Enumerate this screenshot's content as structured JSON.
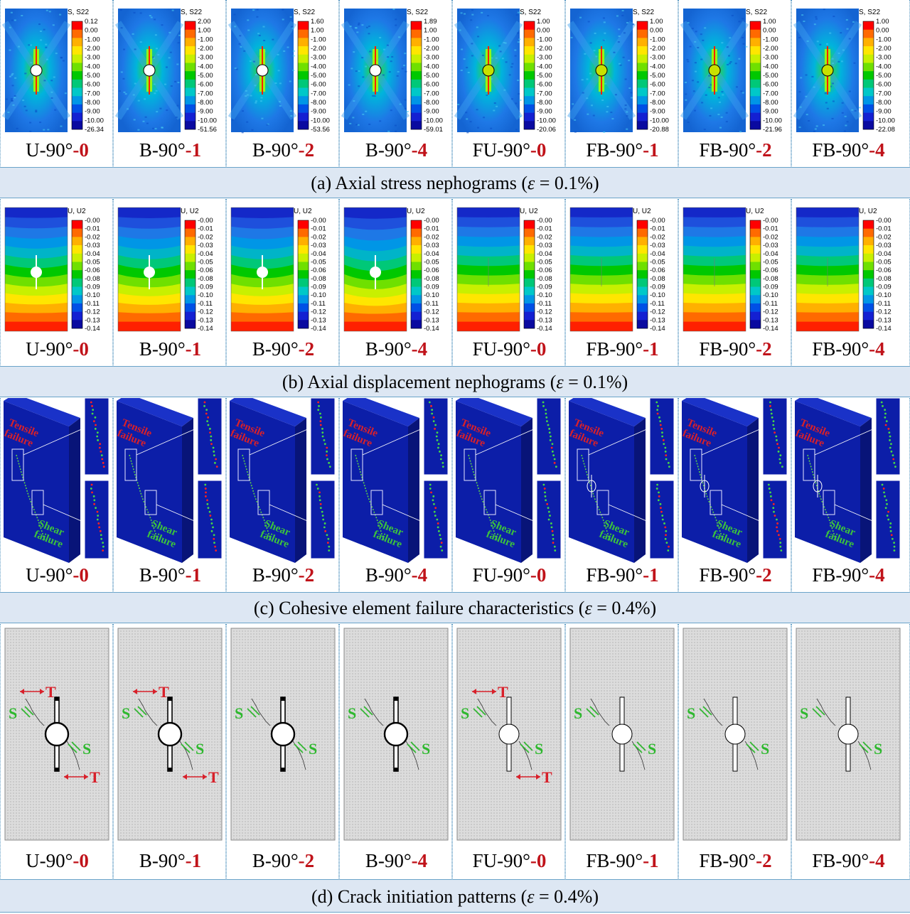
{
  "specimens": [
    {
      "base": "U-90°",
      "suffix": "-0"
    },
    {
      "base": "B-90°",
      "suffix": "-1"
    },
    {
      "base": "B-90°",
      "suffix": "-2"
    },
    {
      "base": "B-90°",
      "suffix": "-4"
    },
    {
      "base": "FU-90°",
      "suffix": "-0"
    },
    {
      "base": "FB-90°",
      "suffix": "-1"
    },
    {
      "base": "FB-90°",
      "suffix": "-2"
    },
    {
      "base": "FB-90°",
      "suffix": "-4"
    }
  ],
  "captions": {
    "a": {
      "prefix": "(a) Axial stress nephograms (",
      "symbol": "ε",
      "suffix": " = 0.1%)"
    },
    "b": {
      "prefix": "(b) Axial displacement nephograms (",
      "symbol": "ε",
      "suffix": " = 0.1%)"
    },
    "c": {
      "prefix": "(c) Cohesive element failure characteristics (",
      "symbol": "ε",
      "suffix": " = 0.4%)"
    },
    "d": {
      "prefix": "(d) Crack initiation patterns (",
      "symbol": "ε",
      "suffix": " = 0.4%)"
    }
  },
  "stress": {
    "legend_title": "S, S22",
    "common_ticks": [
      "-1.00",
      "-2.00",
      "-3.00",
      "-4.00",
      "-5.00",
      "-6.00",
      "-7.00",
      "-8.00",
      "-9.00",
      "-10.00"
    ],
    "top_values": [
      [
        "0.12",
        "0.00"
      ],
      [
        "2.00",
        "1.00"
      ],
      [
        "1.60",
        "1.00"
      ],
      [
        "1.89",
        "1.00"
      ],
      [
        "1.00",
        "0.00"
      ],
      [
        "1.00",
        "0.00"
      ],
      [
        "1.00",
        "0.00"
      ],
      [
        "1.00",
        "0.00"
      ]
    ],
    "min_values": [
      "-26.34",
      "-51.56",
      "-53.56",
      "-59.01",
      "-20.06",
      "-20.88",
      "-21.96",
      "-22.08"
    ]
  },
  "displacement": {
    "legend_title": "U, U2",
    "ticks": [
      "-0.00",
      "-0.01",
      "-0.02",
      "-0.03",
      "-0.04",
      "-0.05",
      "-0.06",
      "-0.08",
      "-0.09",
      "-0.10",
      "-0.11",
      "-0.12",
      "-0.13",
      "-0.14"
    ]
  },
  "failure": {
    "tensile_label": [
      "Tensile",
      "failure"
    ],
    "shear_label": [
      "Shear",
      "failure"
    ]
  },
  "crack": {
    "tension_label": "T",
    "shear_label": "S"
  },
  "colors": {
    "contour": [
      "#ff0000",
      "#ff6a00",
      "#ffb000",
      "#ffe600",
      "#c8f000",
      "#6fe000",
      "#00c800",
      "#00c878",
      "#00c8c8",
      "#0096e6",
      "#0050e6",
      "#1420d2",
      "#0a0aa0"
    ],
    "panel_border": "#6aa3c9",
    "caption_bg": "#dde7f3",
    "suffix_red": "#c0131a"
  }
}
